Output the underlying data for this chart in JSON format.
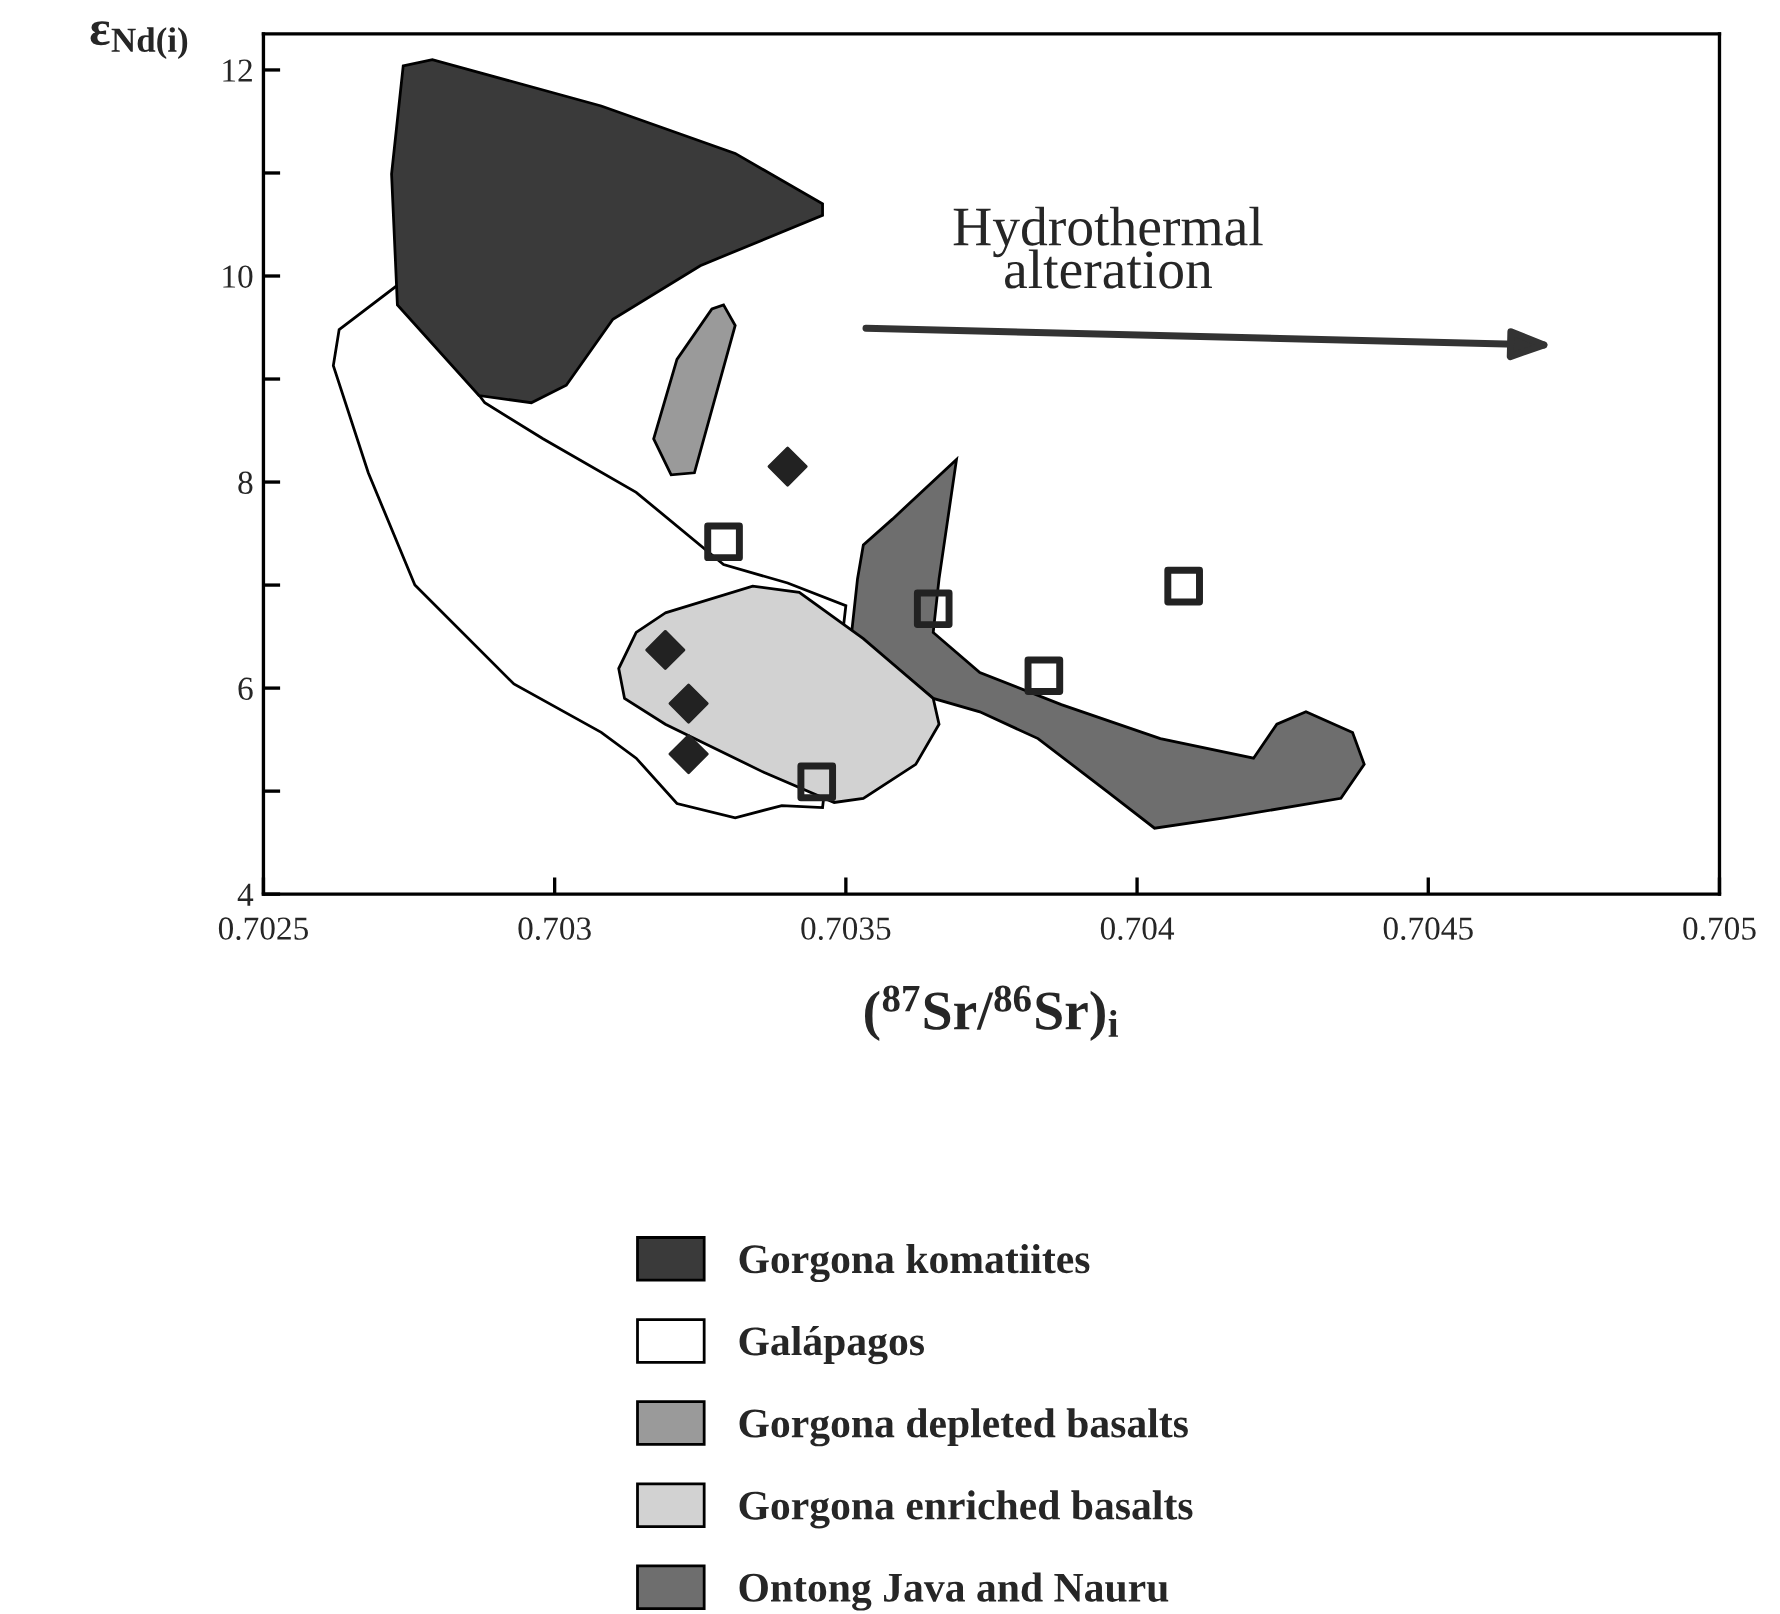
{
  "chart_data": {
    "type": "scatter",
    "xlabel": "($^{87}$Sr/$^{86}$Sr)$_{i}$",
    "ylabel": "ε$_{Nd(i)}$",
    "xlim": [
      0.7025,
      0.705
    ],
    "xticks": [
      0.7025,
      0.703,
      0.7035,
      0.704,
      0.7045,
      0.705
    ],
    "ylim": [
      4,
      12.35
    ],
    "yticks": [
      4,
      {
        "value": 5,
        "label": null
      },
      6,
      {
        "value": 7,
        "label": null
      },
      8,
      {
        "value": 9,
        "label": null
      },
      10,
      {
        "value": 11,
        "label": null
      },
      12
    ],
    "grid": false,
    "legend": "bottom",
    "annotations": [
      "Hydrothermal\nalteration"
    ],
    "series": [
      {
        "name": "Galápagos",
        "type": "area",
        "color": "#ffffff",
        "x": [
          0.70263,
          0.70273,
          0.70288,
          0.70298,
          0.70314,
          0.70329,
          0.7034,
          0.7035,
          0.70346,
          0.70339,
          0.70331,
          0.70321,
          0.70314,
          0.70308,
          0.70293,
          0.70276,
          0.70268,
          0.70262
        ],
        "values": [
          9.48,
          9.91,
          8.77,
          8.42,
          7.9,
          7.2,
          7.02,
          6.8,
          4.84,
          4.86,
          4.74,
          4.88,
          5.32,
          5.57,
          6.04,
          7.0,
          8.09,
          9.13
        ]
      },
      {
        "name": "Gorgona komatiites",
        "type": "area",
        "color": "#3a3a3a",
        "x": [
          0.70274,
          0.70279,
          0.70308,
          0.70331,
          0.70346,
          0.70346,
          0.70325,
          0.7031,
          0.70302,
          0.70296,
          0.70287,
          0.70273,
          0.70272
        ],
        "values": [
          12.04,
          12.1,
          11.65,
          11.19,
          10.7,
          10.59,
          10.1,
          9.58,
          8.94,
          8.77,
          8.84,
          9.72,
          10.99
        ]
      },
      {
        "name": "Gorgona depleted basalts",
        "type": "area",
        "color": "#9a9a9a",
        "x": [
          0.70329,
          0.70331,
          0.70324,
          0.7032,
          0.70317,
          0.70321,
          0.70327
        ],
        "values": [
          9.72,
          9.52,
          8.09,
          8.07,
          8.42,
          9.19,
          9.68
        ]
      },
      {
        "name": "Ontong Java and Nauru",
        "type": "area",
        "color": "#6e6e6e",
        "x": [
          0.70369,
          0.70366,
          0.70365,
          0.70373,
          0.70387,
          0.70404,
          0.7042,
          0.70424,
          0.70429,
          0.70437,
          0.70439,
          0.70435,
          0.70415,
          0.70403,
          0.70395,
          0.70383,
          0.70373,
          0.70365,
          0.70358,
          0.70351,
          0.70352,
          0.70353,
          0.70358
        ],
        "values": [
          8.22,
          7.06,
          6.54,
          6.15,
          5.84,
          5.51,
          5.32,
          5.65,
          5.77,
          5.57,
          5.26,
          4.93,
          4.74,
          4.64,
          4.99,
          5.51,
          5.77,
          5.9,
          6.23,
          6.54,
          7.06,
          7.39,
          7.64
        ]
      },
      {
        "name": "Gorgona enriched basalts",
        "type": "area",
        "color": "#d2d2d2",
        "x": [
          0.70319,
          0.70334,
          0.70342,
          0.70353,
          0.70365,
          0.70366,
          0.70362,
          0.70353,
          0.70348,
          0.70336,
          0.70319,
          0.70312,
          0.70311,
          0.70314
        ],
        "values": [
          6.73,
          6.99,
          6.93,
          6.48,
          5.9,
          5.65,
          5.26,
          4.93,
          4.89,
          5.18,
          5.65,
          5.9,
          6.19,
          6.54
        ]
      },
      {
        "marker": "diamond",
        "color": "#222222",
        "x": [
          0.7034,
          0.70319,
          0.70323,
          0.70323
        ],
        "values": [
          8.15,
          6.37,
          5.85,
          5.36
        ]
      },
      {
        "marker": "square",
        "color": "#222222",
        "x": [
          0.70329,
          0.70345,
          0.70365,
          0.70384,
          0.70408
        ],
        "values": [
          7.42,
          5.09,
          6.77,
          6.12,
          6.99
        ]
      }
    ]
  }
}
